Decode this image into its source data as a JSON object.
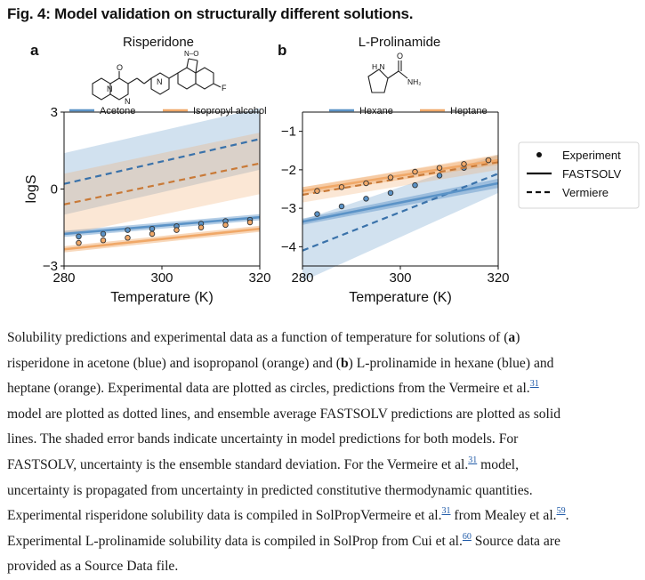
{
  "figure_title": "Fig. 4: Model validation on structurally different solutions.",
  "colors": {
    "blue": "#5b93c7",
    "orange": "#f0a868",
    "blue_dark": "#3a72aa",
    "orange_dark": "#c97a38"
  },
  "legend_models": {
    "experiment": "Experiment",
    "fastsolv": "FASTSOLV",
    "vermeire": "Vermiere"
  },
  "chart_data": [
    {
      "type": "line",
      "panel_letter": "a",
      "title": "Risperidone",
      "molecule_labels": {
        "nitrogen": "N",
        "oxygen": "O",
        "fluorine": "F",
        "isoxazole": "N–O"
      },
      "xlabel": "Temperature (K)",
      "ylabel": "logS",
      "xlim": [
        280,
        320
      ],
      "ylim": [
        -3,
        3
      ],
      "xticks": [
        280,
        300,
        320
      ],
      "yticks": [
        3,
        0,
        -3
      ],
      "ytick_labels": [
        "3",
        "0",
        "−3"
      ],
      "grid": false,
      "legend_position": "top",
      "series": [
        {
          "name": "Acetone",
          "color_key": "blue",
          "fastsolv": {
            "x": [
              280,
              320
            ],
            "y": [
              -1.75,
              -1.1
            ],
            "band": [
              0.12,
              0.12
            ]
          },
          "vermeire": {
            "x": [
              280,
              320
            ],
            "y": [
              0.2,
              1.95
            ],
            "band": [
              1.2,
              1.2
            ]
          },
          "experiment": {
            "x": [
              283,
              288,
              293,
              298,
              303,
              308,
              313,
              318
            ],
            "y": [
              -1.85,
              -1.75,
              -1.6,
              -1.55,
              -1.45,
              -1.35,
              -1.25,
              -1.2
            ]
          }
        },
        {
          "name": "Isopropyl alcohol",
          "color_key": "orange",
          "fastsolv": {
            "x": [
              280,
              320
            ],
            "y": [
              -2.35,
              -1.55
            ],
            "band": [
              0.12,
              0.12
            ]
          },
          "vermeire": {
            "x": [
              280,
              320
            ],
            "y": [
              -0.6,
              1.0
            ],
            "band": [
              1.2,
              1.2
            ]
          },
          "experiment": {
            "x": [
              283,
              288,
              293,
              298,
              303,
              308,
              313,
              318
            ],
            "y": [
              -2.1,
              -2.0,
              -1.9,
              -1.75,
              -1.6,
              -1.5,
              -1.4,
              -1.3
            ]
          }
        }
      ]
    },
    {
      "type": "line",
      "panel_letter": "b",
      "title": "L-Prolinamide",
      "molecule_labels": {
        "nh": "H N",
        "oxygen": "O",
        "amide": "NH₂"
      },
      "xlabel": "Temperature (K)",
      "ylabel": "",
      "xlim": [
        280,
        320
      ],
      "ylim": [
        -4.5,
        -0.5
      ],
      "xticks": [
        280,
        300,
        320
      ],
      "yticks": [
        -1,
        -2,
        -3,
        -4
      ],
      "ytick_labels": [
        "−1",
        "−2",
        "−3",
        "−4"
      ],
      "grid": false,
      "legend_position": "top",
      "series": [
        {
          "name": "Hexane",
          "color_key": "blue",
          "fastsolv": {
            "x": [
              280,
              320
            ],
            "y": [
              -3.35,
              -2.35
            ],
            "band": [
              0.08,
              0.12
            ]
          },
          "vermeire": {
            "x": [
              280,
              320
            ],
            "y": [
              -4.1,
              -2.1
            ],
            "band": [
              0.8,
              0.5
            ]
          },
          "experiment": {
            "x": [
              283,
              288,
              293,
              298,
              303,
              308,
              313,
              318
            ],
            "y": [
              -3.15,
              -2.95,
              -2.75,
              -2.6,
              -2.4,
              -2.15,
              -1.95,
              -1.75
            ]
          }
        },
        {
          "name": "Heptane",
          "color_key": "orange",
          "fastsolv": {
            "x": [
              280,
              320
            ],
            "y": [
              -2.55,
              -1.75
            ],
            "band": [
              0.1,
              0.12
            ]
          },
          "vermeire": {
            "x": [
              280,
              320
            ],
            "y": [
              -2.65,
              -1.8
            ],
            "band": [
              0.2,
              0.2
            ]
          },
          "experiment": {
            "x": [
              283,
              288,
              293,
              298,
              303,
              308,
              313,
              318
            ],
            "y": [
              -2.55,
              -2.45,
              -2.35,
              -2.2,
              -2.05,
              -1.95,
              -1.85,
              -1.75
            ]
          }
        }
      ]
    }
  ],
  "caption": {
    "p1": "Solubility predictions and experimental data as a function of temperature for solutions of (",
    "a": "a",
    "p2": ")",
    "p3": "risperidone in acetone (blue) and isopropanol (orange) and (",
    "b": "b",
    "p4": ") L-prolinamide in hexane (blue) and",
    "p5": "heptane (orange). Experimental data are plotted as circles, predictions from the Vermeire et al.",
    "ref31": "31",
    "p6": "model are plotted as dotted lines, and ensemble average FASTSOLV predictions are plotted as solid",
    "p7": "lines. The shaded error bands indicate uncertainty in model predictions for both models. For",
    "p8": "FASTSOLV, uncertainty is the ensemble standard deviation. For the Vermeire et al.",
    "p9": " model,",
    "p10": "uncertainty is propagated from uncertainty in predicted constitutive thermodynamic quantities.",
    "p11": "Experimental risperidone solubility data is compiled in SolPropVermeire et al.",
    "p12": " from Mealey et al.",
    "ref59": "59",
    "p13": ".",
    "p14": "Experimental L-prolinamide solubility data is compiled in SolProp from Cui et al.",
    "ref60": "60",
    "p15": " Source data are",
    "p16": "provided as a Source Data file."
  }
}
